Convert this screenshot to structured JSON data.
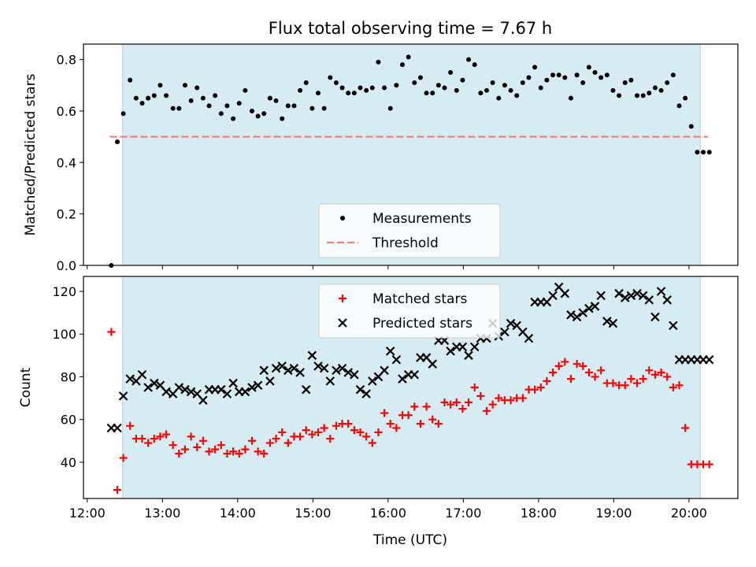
{
  "chart_data": {
    "title": "Flux total observing time = 7.67 h",
    "xlabel": "Time (UTC)",
    "xlim": [
      11.95,
      20.65
    ],
    "x_ticks": [
      12,
      13,
      14,
      15,
      16,
      17,
      18,
      19,
      20
    ],
    "x_tick_labels": [
      "12:00",
      "13:00",
      "14:00",
      "15:00",
      "16:00",
      "17:00",
      "18:00",
      "19:00",
      "20:00"
    ],
    "observing_window": [
      12.47,
      20.15
    ],
    "panels": [
      {
        "type": "scatter",
        "ylabel": "Matched/Predicted stars",
        "ylim": [
          0,
          0.86
        ],
        "y_ticks": [
          0,
          0.2,
          0.4,
          0.6,
          0.8
        ],
        "y_tick_labels": [
          "0.0",
          "0.2",
          "0.4",
          "0.6",
          "0.8"
        ],
        "legend": "bottom-center",
        "series": [
          {
            "name": "Measurements",
            "color": "#000000",
            "marker": "dot",
            "x": [
              12.32,
              12.4,
              12.48,
              12.57,
              12.65,
              12.73,
              12.81,
              12.89,
              12.97,
              13.05,
              13.14,
              13.22,
              13.3,
              13.38,
              13.46,
              13.54,
              13.62,
              13.7,
              13.78,
              13.86,
              13.94,
              14.02,
              14.1,
              14.19,
              14.27,
              14.35,
              14.43,
              14.51,
              14.59,
              14.67,
              14.75,
              14.83,
              14.91,
              14.99,
              15.07,
              15.15,
              15.23,
              15.31,
              15.39,
              15.47,
              15.55,
              15.63,
              15.71,
              15.79,
              15.87,
              15.95,
              16.03,
              16.11,
              16.19,
              16.27,
              16.35,
              16.43,
              16.51,
              16.59,
              16.67,
              16.75,
              16.83,
              16.91,
              16.99,
              17.07,
              17.15,
              17.23,
              17.31,
              17.39,
              17.47,
              17.55,
              17.63,
              17.71,
              17.79,
              17.87,
              17.95,
              18.03,
              18.11,
              18.19,
              18.27,
              18.35,
              18.43,
              18.51,
              18.59,
              18.67,
              18.75,
              18.83,
              18.91,
              18.99,
              19.07,
              19.15,
              19.23,
              19.31,
              19.39,
              19.47,
              19.55,
              19.63,
              19.71,
              19.79,
              19.87,
              19.95,
              20.03,
              20.11,
              20.19,
              20.27
            ],
            "y": [
              0.0,
              0.48,
              0.59,
              0.72,
              0.65,
              0.63,
              0.65,
              0.66,
              0.7,
              0.66,
              0.61,
              0.61,
              0.7,
              0.64,
              0.69,
              0.65,
              0.62,
              0.66,
              0.59,
              0.62,
              0.57,
              0.63,
              0.68,
              0.6,
              0.58,
              0.59,
              0.65,
              0.64,
              0.57,
              0.62,
              0.62,
              0.68,
              0.71,
              0.61,
              0.67,
              0.61,
              0.73,
              0.71,
              0.69,
              0.67,
              0.67,
              0.69,
              0.68,
              0.69,
              0.79,
              0.69,
              0.61,
              0.7,
              0.78,
              0.81,
              0.71,
              0.73,
              0.67,
              0.67,
              0.7,
              0.69,
              0.75,
              0.68,
              0.72,
              0.8,
              0.78,
              0.67,
              0.68,
              0.71,
              0.65,
              0.7,
              0.68,
              0.66,
              0.71,
              0.73,
              0.77,
              0.69,
              0.72,
              0.74,
              0.74,
              0.73,
              0.65,
              0.74,
              0.71,
              0.77,
              0.75,
              0.73,
              0.74,
              0.68,
              0.66,
              0.71,
              0.72,
              0.66,
              0.66,
              0.67,
              0.69,
              0.68,
              0.71,
              0.74,
              0.62,
              0.65,
              0.54,
              0.44,
              0.44,
              0.44
            ]
          },
          {
            "name": "Threshold",
            "type": "hline",
            "color": "#f08080",
            "style": "dashed",
            "y": 0.5,
            "x_range": [
              12.3,
              20.25
            ]
          }
        ]
      },
      {
        "type": "scatter",
        "ylabel": "Count",
        "ylim": [
          23,
          127
        ],
        "y_ticks": [
          40,
          60,
          80,
          100,
          120
        ],
        "y_tick_labels": [
          "40",
          "60",
          "80",
          "100",
          "120"
        ],
        "legend": "top-center",
        "series": [
          {
            "name": "Matched stars",
            "color": "#ff0000",
            "marker": "plus",
            "x": [
              12.32,
              12.4,
              12.48,
              12.57,
              12.65,
              12.73,
              12.81,
              12.89,
              12.97,
              13.05,
              13.14,
              13.22,
              13.3,
              13.38,
              13.46,
              13.54,
              13.62,
              13.7,
              13.78,
              13.86,
              13.94,
              14.02,
              14.1,
              14.19,
              14.27,
              14.35,
              14.43,
              14.51,
              14.59,
              14.67,
              14.75,
              14.83,
              14.91,
              14.99,
              15.07,
              15.15,
              15.23,
              15.31,
              15.39,
              15.47,
              15.55,
              15.63,
              15.71,
              15.79,
              15.87,
              15.95,
              16.03,
              16.11,
              16.19,
              16.27,
              16.35,
              16.43,
              16.51,
              16.59,
              16.67,
              16.75,
              16.83,
              16.91,
              16.99,
              17.07,
              17.15,
              17.23,
              17.31,
              17.39,
              17.47,
              17.55,
              17.63,
              17.71,
              17.79,
              17.87,
              17.95,
              18.03,
              18.11,
              18.19,
              18.27,
              18.35,
              18.43,
              18.51,
              18.59,
              18.67,
              18.75,
              18.83,
              18.91,
              18.99,
              19.07,
              19.15,
              19.23,
              19.31,
              19.39,
              19.47,
              19.55,
              19.63,
              19.71,
              19.79,
              19.87,
              19.95,
              20.03,
              20.11,
              20.19,
              20.27
            ],
            "y": [
              101,
              27,
              42,
              57,
              51,
              51,
              49,
              51,
              52,
              53,
              48,
              44,
              46,
              52,
              47,
              50,
              45,
              46,
              48,
              44,
              45,
              44,
              46,
              50,
              45,
              44,
              49,
              51,
              54,
              49,
              52,
              52,
              55,
              53,
              54,
              56,
              51,
              57,
              58,
              58,
              55,
              54,
              52,
              49,
              54,
              63,
              58,
              56,
              62,
              62,
              66,
              58,
              66,
              60,
              58,
              68,
              67,
              68,
              65,
              68,
              75,
              71,
              64,
              67,
              70,
              69,
              69,
              70,
              70,
              74,
              74,
              75,
              78,
              82,
              85,
              87,
              79,
              86,
              85,
              82,
              80,
              83,
              77,
              77,
              76,
              76,
              79,
              77,
              79,
              83,
              81,
              82,
              80,
              75,
              76,
              56,
              39,
              39,
              39,
              39
            ]
          },
          {
            "name": "Predicted stars",
            "color": "#000000",
            "marker": "x",
            "x": [
              12.32,
              12.4,
              12.48,
              12.57,
              12.65,
              12.73,
              12.81,
              12.89,
              12.97,
              13.05,
              13.14,
              13.22,
              13.3,
              13.38,
              13.46,
              13.54,
              13.62,
              13.7,
              13.78,
              13.86,
              13.94,
              14.02,
              14.1,
              14.19,
              14.27,
              14.35,
              14.43,
              14.51,
              14.59,
              14.67,
              14.75,
              14.83,
              14.91,
              14.99,
              15.07,
              15.15,
              15.23,
              15.31,
              15.39,
              15.47,
              15.55,
              15.63,
              15.71,
              15.79,
              15.87,
              15.95,
              16.03,
              16.11,
              16.19,
              16.27,
              16.35,
              16.43,
              16.51,
              16.59,
              16.67,
              16.75,
              16.83,
              16.91,
              16.99,
              17.07,
              17.15,
              17.23,
              17.31,
              17.39,
              17.47,
              17.55,
              17.63,
              17.71,
              17.79,
              17.87,
              17.95,
              18.03,
              18.11,
              18.19,
              18.27,
              18.35,
              18.43,
              18.51,
              18.59,
              18.67,
              18.75,
              18.83,
              18.91,
              18.99,
              19.07,
              19.15,
              19.23,
              19.31,
              19.39,
              19.47,
              19.55,
              19.63,
              19.71,
              19.79,
              19.87,
              19.95,
              20.03,
              20.11,
              20.19,
              20.27
            ],
            "y": [
              56,
              56,
              71,
              79,
              78,
              81,
              75,
              77,
              76,
              73,
              72,
              75,
              74,
              73,
              72,
              69,
              74,
              74,
              74,
              72,
              77,
              73,
              73,
              75,
              76,
              83,
              78,
              84,
              85,
              83,
              84,
              82,
              74,
              90,
              85,
              84,
              78,
              83,
              84,
              82,
              81,
              74,
              72,
              78,
              80,
              83,
              92,
              88,
              79,
              81,
              81,
              89,
              89,
              86,
              97,
              97,
              92,
              94,
              94,
              90,
              94,
              98,
              98,
              105,
              99,
              101,
              105,
              104,
              101,
              98,
              115,
              115,
              115,
              118,
              122,
              119,
              109,
              108,
              110,
              112,
              113,
              118,
              106,
              105,
              119,
              117,
              118,
              119,
              118,
              116,
              108,
              120,
              116,
              104,
              88,
              88,
              88,
              88,
              88,
              88
            ]
          }
        ]
      }
    ]
  }
}
